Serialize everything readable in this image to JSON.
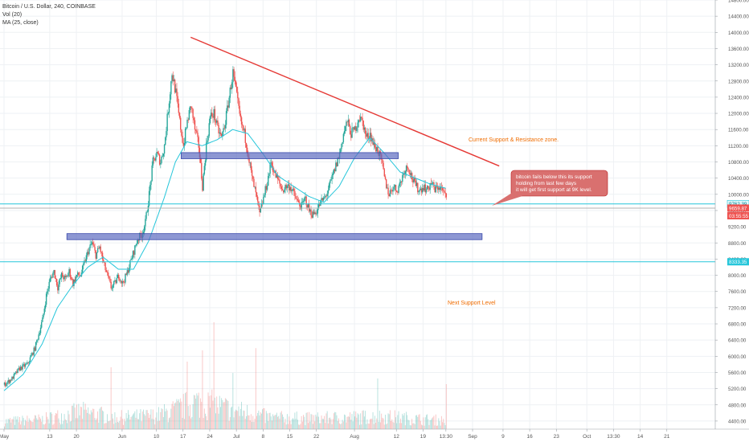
{
  "chart_data": {
    "type": "candlestick",
    "header": {
      "title": "Bitcoin / U.S. Dollar, 240, COINBASE",
      "vol_label": "Vol (20)",
      "ma_label": "MA (25, close)"
    },
    "y_axis": {
      "min": 4200,
      "max": 14800,
      "ticks": [
        4400,
        4800,
        5200,
        5600,
        6000,
        6400,
        6800,
        7200,
        7600,
        8000,
        8400,
        8800,
        9200,
        9600,
        10000,
        10400,
        10800,
        11200,
        11600,
        12000,
        12400,
        12800,
        13200,
        13600,
        14000,
        14400,
        14800
      ],
      "tick_labels": [
        "4400.00",
        "4800.00",
        "5200.00",
        "5600.00",
        "6000.00",
        "6400.00",
        "6800.00",
        "7200.00",
        "7600.00",
        "8000.00",
        "8400.00",
        "8800.00",
        "9200.00",
        "9600.00",
        "10000.00",
        "10400.00",
        "10800.00",
        "11200.00",
        "11600.00",
        "12000.00",
        "12400.00",
        "12800.00",
        "13200.00",
        "13600.00",
        "14000.00",
        "14400.00",
        "14800.00"
      ]
    },
    "x_axis": {
      "min_day": 0,
      "max_day": 149,
      "ticks": [
        {
          "label": "May",
          "day": 0
        },
        {
          "label": "13",
          "day": 12
        },
        {
          "label": "20",
          "day": 19
        },
        {
          "label": "Jun",
          "day": 31
        },
        {
          "label": "10",
          "day": 40
        },
        {
          "label": "17",
          "day": 47
        },
        {
          "label": "24",
          "day": 54
        },
        {
          "label": "Jul",
          "day": 61
        },
        {
          "label": "8",
          "day": 68
        },
        {
          "label": "15",
          "day": 75
        },
        {
          "label": "22",
          "day": 82
        },
        {
          "label": "Aug",
          "day": 92
        },
        {
          "label": "12",
          "day": 103
        },
        {
          "label": "19",
          "day": 110
        },
        {
          "label": "13:30",
          "day": 116
        },
        {
          "label": "Sep",
          "day": 123
        },
        {
          "label": "9",
          "day": 131
        },
        {
          "label": "16",
          "day": 138
        },
        {
          "label": "23",
          "day": 145
        },
        {
          "label": "Oct",
          "day": 153
        },
        {
          "label": "13:30",
          "day": 160
        },
        {
          "label": "14",
          "day": 167
        },
        {
          "label": "21",
          "day": 174
        }
      ]
    },
    "price_path": [
      [
        0,
        5300
      ],
      [
        2,
        5450
      ],
      [
        4,
        5700
      ],
      [
        6,
        5800
      ],
      [
        8,
        6200
      ],
      [
        10,
        6900
      ],
      [
        11,
        7500
      ],
      [
        12,
        7900
      ],
      [
        13,
        8100
      ],
      [
        14,
        7700
      ],
      [
        15,
        8000
      ],
      [
        16,
        7900
      ],
      [
        17,
        8100
      ],
      [
        18,
        7800
      ],
      [
        19,
        8000
      ],
      [
        20,
        8000
      ],
      [
        21,
        8300
      ],
      [
        22,
        8600
      ],
      [
        23,
        8800
      ],
      [
        24,
        8500
      ],
      [
        25,
        8700
      ],
      [
        26,
        8300
      ],
      [
        27,
        8000
      ],
      [
        28,
        7700
      ],
      [
        29,
        7800
      ],
      [
        30,
        8000
      ],
      [
        31,
        7800
      ],
      [
        32,
        8000
      ],
      [
        33,
        8300
      ],
      [
        34,
        8600
      ],
      [
        35,
        8900
      ],
      [
        36,
        9000
      ],
      [
        37,
        9300
      ],
      [
        38,
        10000
      ],
      [
        39,
        10800
      ],
      [
        40,
        11000
      ],
      [
        41,
        10800
      ],
      [
        42,
        11200
      ],
      [
        43,
        12100
      ],
      [
        44,
        13000
      ],
      [
        45,
        12500
      ],
      [
        46,
        11800
      ],
      [
        47,
        11200
      ],
      [
        48,
        11800
      ],
      [
        49,
        12200
      ],
      [
        50,
        11600
      ],
      [
        51,
        11200
      ],
      [
        52,
        10200
      ],
      [
        53,
        11200
      ],
      [
        54,
        11900
      ],
      [
        55,
        12000
      ],
      [
        56,
        11600
      ],
      [
        57,
        11400
      ],
      [
        58,
        11800
      ],
      [
        59,
        12400
      ],
      [
        60,
        13000
      ],
      [
        61,
        12400
      ],
      [
        62,
        11800
      ],
      [
        63,
        11500
      ],
      [
        64,
        11000
      ],
      [
        65,
        10400
      ],
      [
        66,
        10000
      ],
      [
        67,
        9500
      ],
      [
        68,
        9900
      ],
      [
        69,
        10300
      ],
      [
        70,
        10800
      ],
      [
        71,
        10500
      ],
      [
        72,
        10300
      ],
      [
        73,
        10100
      ],
      [
        74,
        10200
      ],
      [
        75,
        10200
      ],
      [
        76,
        10000
      ],
      [
        77,
        9800
      ],
      [
        78,
        9700
      ],
      [
        79,
        9900
      ],
      [
        80,
        9600
      ],
      [
        81,
        9500
      ],
      [
        82,
        9600
      ],
      [
        83,
        9800
      ],
      [
        84,
        9900
      ],
      [
        85,
        10100
      ],
      [
        86,
        10400
      ],
      [
        87,
        10700
      ],
      [
        88,
        11000
      ],
      [
        89,
        11500
      ],
      [
        90,
        11800
      ],
      [
        91,
        11500
      ],
      [
        92,
        11600
      ],
      [
        93,
        11900
      ],
      [
        94,
        11800
      ],
      [
        95,
        11400
      ],
      [
        96,
        11500
      ],
      [
        97,
        11200
      ],
      [
        98,
        11100
      ],
      [
        99,
        10800
      ],
      [
        100,
        10300
      ],
      [
        101,
        10000
      ],
      [
        102,
        10200
      ],
      [
        103,
        10100
      ],
      [
        104,
        10300
      ],
      [
        105,
        10600
      ],
      [
        106,
        10700
      ],
      [
        107,
        10400
      ],
      [
        108,
        10200
      ],
      [
        109,
        10100
      ],
      [
        110,
        10200
      ],
      [
        111,
        10100
      ],
      [
        112,
        10300
      ],
      [
        113,
        10100
      ],
      [
        114,
        10200
      ],
      [
        115,
        10100
      ],
      [
        116,
        9900
      ]
    ],
    "ma25_path": [
      [
        0,
        5150
      ],
      [
        5,
        5550
      ],
      [
        10,
        6300
      ],
      [
        14,
        7200
      ],
      [
        18,
        7750
      ],
      [
        22,
        8200
      ],
      [
        26,
        8450
      ],
      [
        30,
        8150
      ],
      [
        34,
        8150
      ],
      [
        38,
        8850
      ],
      [
        42,
        9900
      ],
      [
        45,
        10800
      ],
      [
        48,
        11300
      ],
      [
        52,
        11200
      ],
      [
        56,
        11350
      ],
      [
        60,
        11600
      ],
      [
        64,
        11500
      ],
      [
        68,
        11000
      ],
      [
        72,
        10450
      ],
      [
        76,
        10200
      ],
      [
        80,
        9950
      ],
      [
        84,
        9800
      ],
      [
        88,
        10200
      ],
      [
        92,
        10900
      ],
      [
        96,
        11400
      ],
      [
        100,
        11000
      ],
      [
        104,
        10550
      ],
      [
        108,
        10400
      ],
      [
        112,
        10250
      ],
      [
        116,
        10150
      ]
    ],
    "volume_profile": [
      [
        0,
        0.08
      ],
      [
        10,
        0.1
      ],
      [
        20,
        0.18
      ],
      [
        30,
        0.12
      ],
      [
        40,
        0.14
      ],
      [
        45,
        0.2
      ],
      [
        50,
        0.28
      ],
      [
        55,
        0.25
      ],
      [
        60,
        0.2
      ],
      [
        65,
        0.16
      ],
      [
        70,
        0.12
      ],
      [
        80,
        0.11
      ],
      [
        90,
        0.12
      ],
      [
        100,
        0.13
      ],
      [
        110,
        0.1
      ],
      [
        116,
        0.09
      ]
    ],
    "volume_spikes": [
      [
        55,
        0.95
      ],
      [
        52,
        0.7
      ],
      [
        48,
        0.6
      ],
      [
        66,
        0.72
      ],
      [
        28,
        0.55
      ],
      [
        60,
        0.5
      ],
      [
        116,
        0.4
      ],
      [
        98,
        0.45
      ]
    ],
    "trendline": {
      "from": [
        49,
        13880
      ],
      "to": [
        130,
        10700
      ],
      "color": "#e53935"
    },
    "zones": [
      {
        "day_from": 46.5,
        "day_to": 103.5,
        "price_top": 11030,
        "price_bottom": 10880,
        "color": "#5c6bc0"
      },
      {
        "day_from": 16.5,
        "day_to": 125.5,
        "price_top": 9030,
        "price_bottom": 8880,
        "color": "#5c6bc0"
      }
    ],
    "hlines": [
      {
        "price": 9762.39,
        "color": "#26c6da"
      },
      {
        "price": 9659.87,
        "color": "#b0b0b0"
      },
      {
        "price": 8333.35,
        "color": "#26c6da"
      }
    ],
    "price_badges": [
      {
        "text": "9762.39",
        "price": 9762.39,
        "bg": "#e0f7fa",
        "fg": "#00838f"
      },
      {
        "text": "9659.87",
        "price": 9659.87,
        "bg": "#ef5350",
        "fg": "#ffffff"
      },
      {
        "text": "03:55:55",
        "price": 9470,
        "bg": "#ef5350",
        "fg": "#ffffff"
      },
      {
        "text": "8333.35",
        "price": 8333.35,
        "bg": "#26c6da",
        "fg": "#ffffff"
      }
    ],
    "annotations": {
      "zone_label": "Current Support & Resistance zone.",
      "next_label": "Next Support Level",
      "callout_lines": [
        "bitcoin fails below this its support",
        "holding from last few days",
        "it will get first support at 9K level."
      ],
      "label_color": "#ef6c00",
      "callout_bg": "#d9706f"
    },
    "colors": {
      "up": "#26a69a",
      "down": "#ef5350",
      "ma": "#26c6da",
      "grid": "#eef1f4"
    }
  }
}
